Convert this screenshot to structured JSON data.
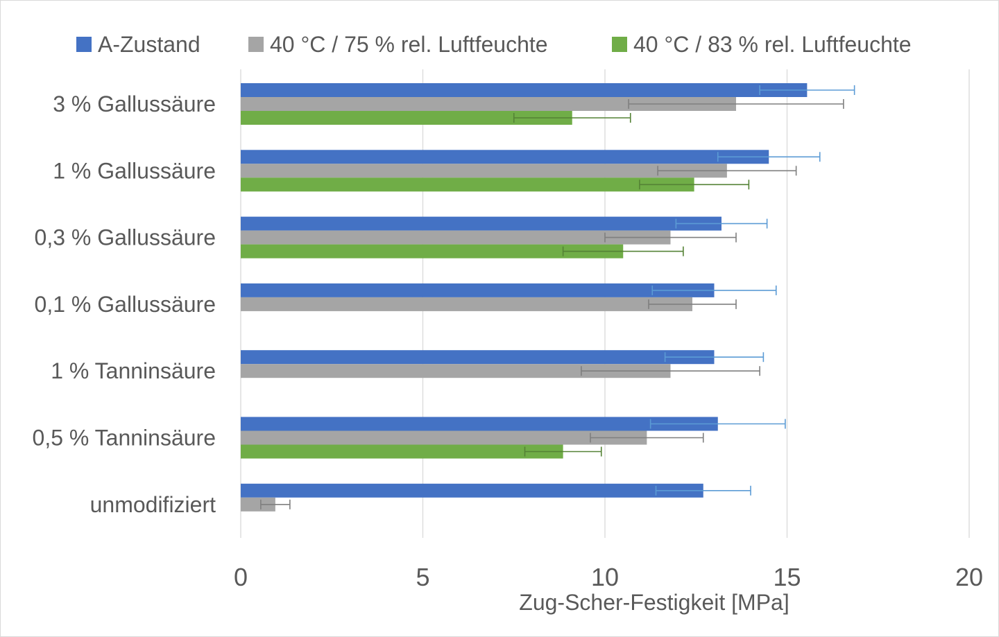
{
  "chart_data": {
    "type": "bar",
    "orientation": "horizontal",
    "title": "",
    "xlabel": "Zug-Scher-Festigkeit [MPa]",
    "ylabel": "",
    "xlim": [
      0,
      20
    ],
    "xticks": [
      "0",
      "5",
      "10",
      "15",
      "20"
    ],
    "grid": "vertical",
    "legend_position": "top",
    "categories": [
      "3 % Gallussäure",
      "1 % Gallussäure",
      "0,3 % Gallussäure",
      "0,1 % Gallussäure",
      "1 % Tanninsäure",
      "0,5 % Tanninsäure",
      "unmodifiziert"
    ],
    "series": [
      {
        "name": "A-Zustand",
        "color": "#4472c4",
        "error_color": "#5b9bd5",
        "values": [
          15.55,
          14.5,
          13.2,
          13.0,
          13.0,
          13.1,
          12.7
        ],
        "errors": [
          1.3,
          1.4,
          1.25,
          1.7,
          1.35,
          1.85,
          1.3
        ]
      },
      {
        "name": "40 °C / 75 % rel. Luftfeuchte",
        "color": "#a5a5a5",
        "error_color": "#7f7f7f",
        "values": [
          13.6,
          13.35,
          11.8,
          12.4,
          11.8,
          11.15,
          0.95
        ],
        "errors": [
          2.95,
          1.9,
          1.8,
          1.2,
          2.45,
          1.55,
          0.4
        ]
      },
      {
        "name": "40 °C / 83 % rel. Luftfeuchte",
        "color": "#70ad47",
        "error_color": "#548235",
        "values": [
          9.1,
          12.45,
          10.5,
          null,
          null,
          8.85,
          null
        ],
        "errors": [
          1.6,
          1.5,
          1.65,
          null,
          null,
          1.05,
          null
        ]
      }
    ]
  }
}
